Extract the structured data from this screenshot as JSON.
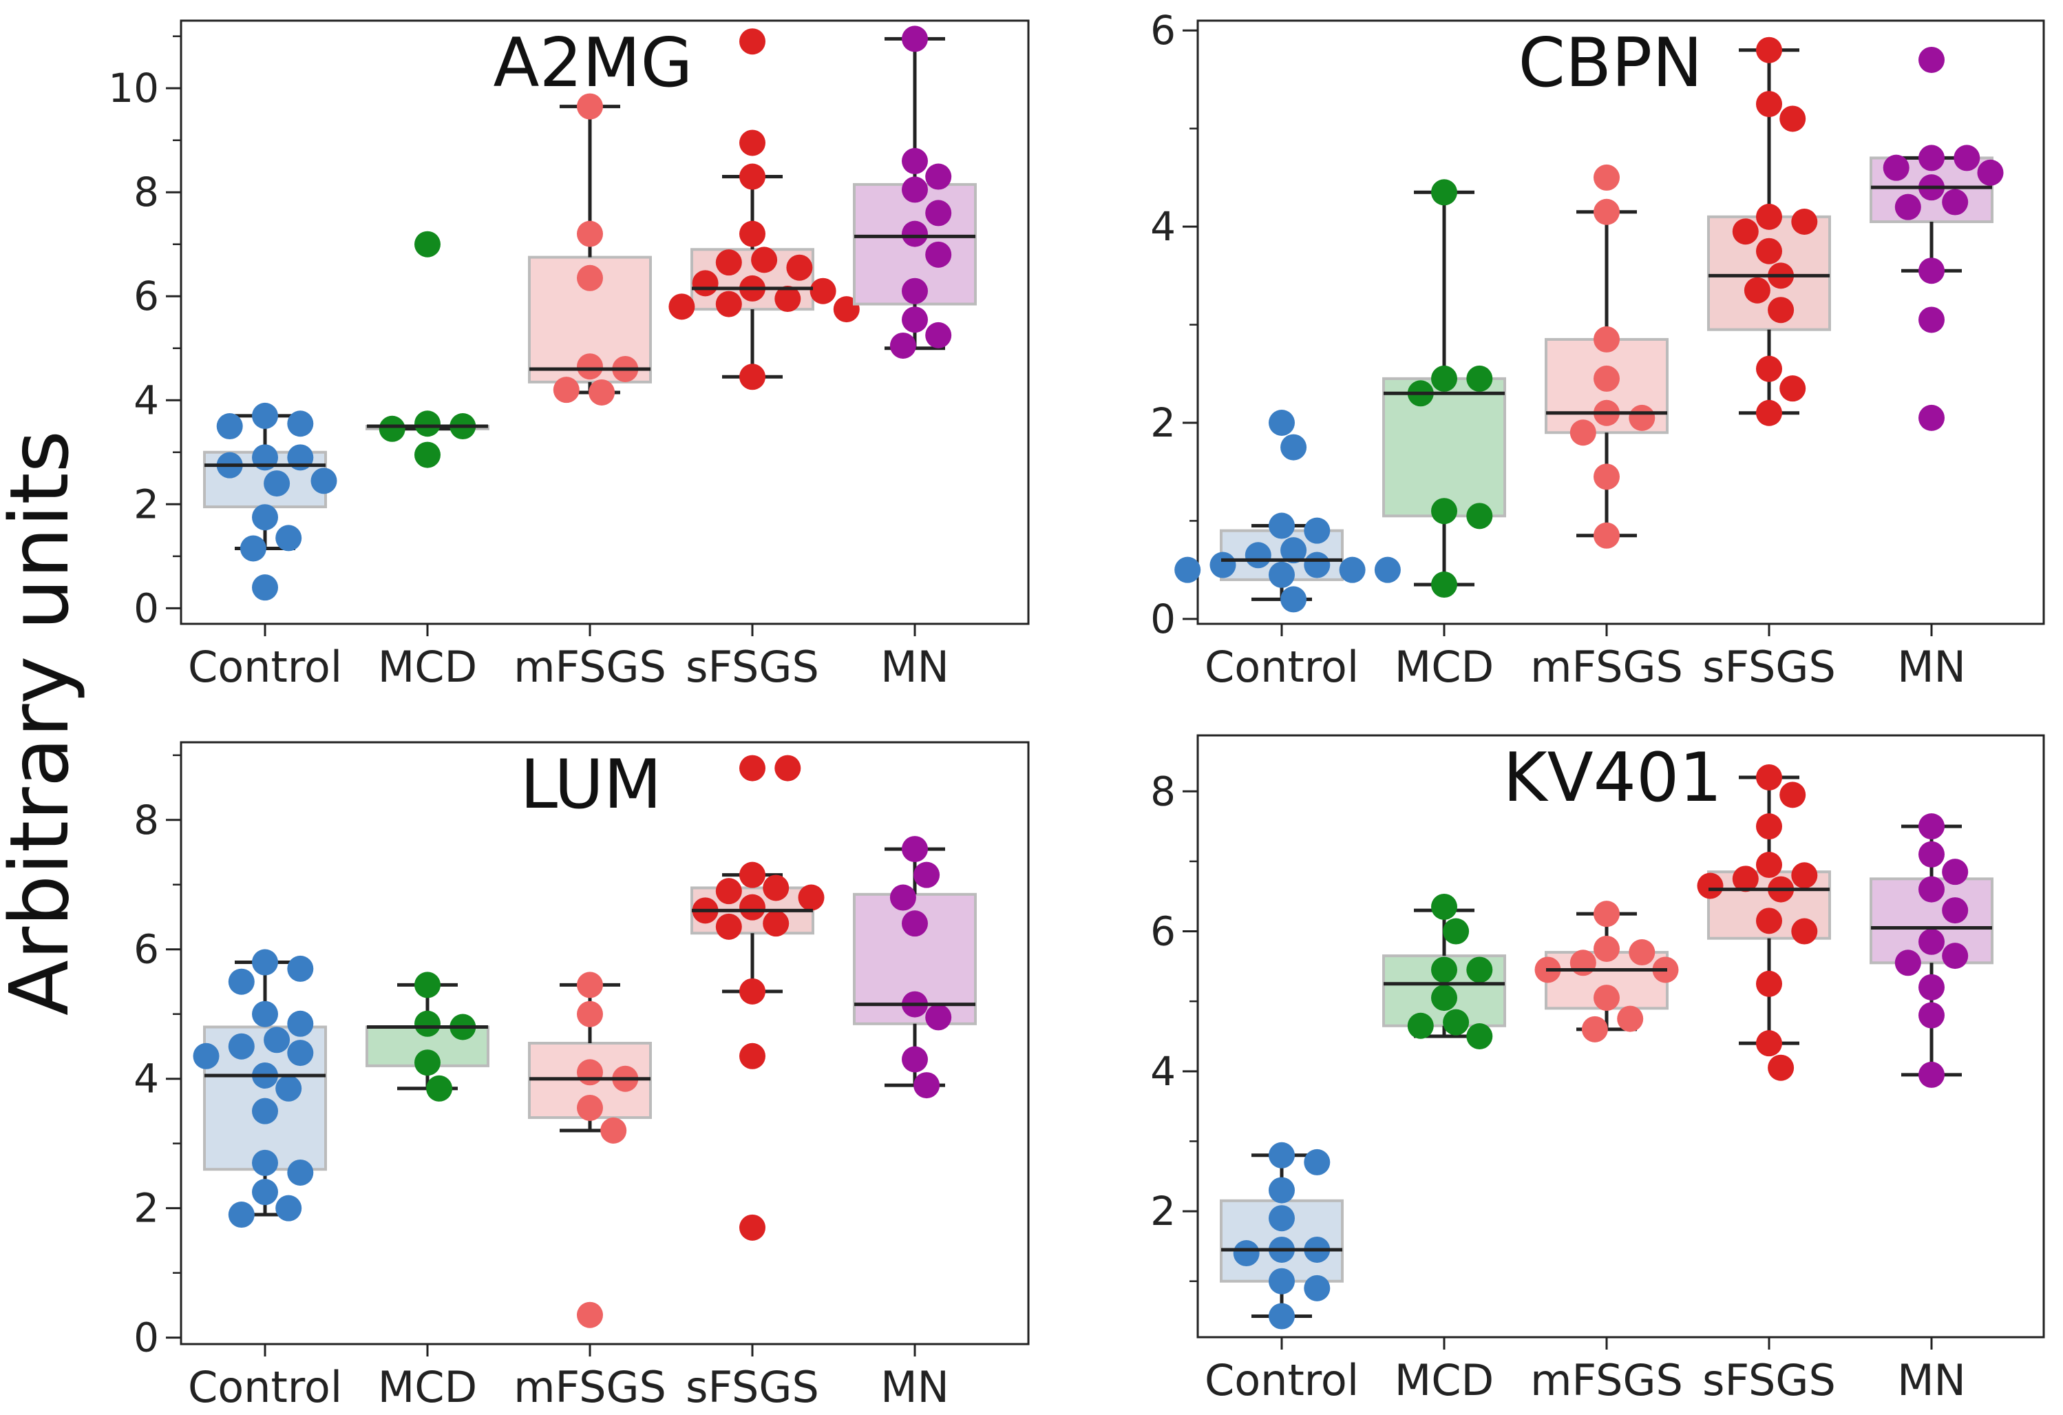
{
  "figure": {
    "shared_ylabel": "Arbitrary units",
    "colors": {
      "Control": "#3a7ec4",
      "MCD": "#118a1d",
      "mFSGS": "#ee6363",
      "sFSGS": "#dd2222",
      "MN": "#9c109c"
    },
    "box_fill": {
      "Control": "#d2deeb",
      "MCD": "#bde0c3",
      "mFSGS": "#f7d3d3",
      "sFSGS": "#f2cfcf",
      "MN": "#e3c2e3"
    }
  },
  "chart_data": [
    {
      "type": "box",
      "title": "A2MG",
      "categories": [
        "Control",
        "MCD",
        "mFSGS",
        "sFSGS",
        "MN"
      ],
      "ylim": [
        -0.3,
        11.3
      ],
      "yticks": [
        0,
        2,
        4,
        6,
        8,
        10
      ],
      "yminor": [
        1,
        3,
        5,
        7,
        9,
        11
      ],
      "series": [
        {
          "name": "Control",
          "box": {
            "q1": 1.95,
            "median": 2.75,
            "q3": 3.0,
            "whislo": 1.15,
            "whishi": 3.7
          },
          "points": [
            0.4,
            1.15,
            1.35,
            1.75,
            2.4,
            2.45,
            2.75,
            2.9,
            2.9,
            3.5,
            3.55,
            3.7
          ]
        },
        {
          "name": "MCD",
          "box": {
            "q1": 3.45,
            "median": 3.5,
            "q3": 3.5,
            "whislo": 3.45,
            "whishi": 3.5
          },
          "points": [
            2.95,
            3.45,
            3.5,
            3.55,
            7.0
          ]
        },
        {
          "name": "mFSGS",
          "box": {
            "q1": 4.35,
            "median": 4.6,
            "q3": 6.75,
            "whislo": 4.15,
            "whishi": 9.65
          },
          "points": [
            4.15,
            4.2,
            4.6,
            4.65,
            6.35,
            7.2,
            9.65
          ]
        },
        {
          "name": "sFSGS",
          "box": {
            "q1": 5.75,
            "median": 6.15,
            "q3": 6.9,
            "whislo": 4.45,
            "whishi": 8.3
          },
          "points": [
            4.45,
            5.75,
            5.8,
            5.85,
            5.95,
            6.1,
            6.15,
            6.25,
            6.55,
            6.65,
            6.7,
            7.2,
            8.3,
            8.95,
            10.9
          ]
        },
        {
          "name": "MN",
          "box": {
            "q1": 5.85,
            "median": 7.15,
            "q3": 8.15,
            "whislo": 5.0,
            "whishi": 10.95
          },
          "points": [
            5.05,
            5.25,
            5.55,
            6.1,
            6.8,
            7.2,
            7.6,
            8.05,
            8.3,
            8.6,
            10.95
          ]
        }
      ]
    },
    {
      "type": "box",
      "title": "CBPN",
      "categories": [
        "Control",
        "MCD",
        "mFSGS",
        "sFSGS",
        "MN"
      ],
      "ylim": [
        -0.05,
        6.1
      ],
      "yticks": [
        0,
        2,
        4,
        6
      ],
      "yminor": [
        1,
        3,
        5
      ],
      "series": [
        {
          "name": "Control",
          "box": {
            "q1": 0.4,
            "median": 0.6,
            "q3": 0.9,
            "whislo": 0.2,
            "whishi": 0.95
          },
          "points": [
            0.2,
            0.45,
            0.5,
            0.5,
            0.5,
            0.55,
            0.55,
            0.65,
            0.7,
            0.9,
            0.95,
            1.75,
            2.0
          ]
        },
        {
          "name": "MCD",
          "box": {
            "q1": 1.05,
            "median": 2.3,
            "q3": 2.45,
            "whislo": 0.35,
            "whishi": 4.35
          },
          "points": [
            0.35,
            1.05,
            1.1,
            2.3,
            2.45,
            2.45,
            4.35
          ]
        },
        {
          "name": "mFSGS",
          "box": {
            "q1": 1.9,
            "median": 2.1,
            "q3": 2.85,
            "whislo": 0.85,
            "whishi": 4.15
          },
          "points": [
            0.85,
            1.45,
            1.9,
            2.05,
            2.1,
            2.45,
            2.85,
            4.15,
            4.5
          ]
        },
        {
          "name": "sFSGS",
          "box": {
            "q1": 2.95,
            "median": 3.5,
            "q3": 4.1,
            "whislo": 2.1,
            "whishi": 5.8
          },
          "points": [
            2.1,
            2.35,
            2.55,
            3.15,
            3.35,
            3.5,
            3.75,
            3.95,
            4.05,
            4.1,
            5.1,
            5.25,
            5.8
          ]
        },
        {
          "name": "MN",
          "box": {
            "q1": 4.05,
            "median": 4.4,
            "q3": 4.7,
            "whislo": 3.55,
            "whishi": 4.7
          },
          "points": [
            2.05,
            3.05,
            3.55,
            4.2,
            4.25,
            4.4,
            4.55,
            4.6,
            4.7,
            4.7,
            5.7
          ]
        }
      ]
    },
    {
      "type": "box",
      "title": "LUM",
      "categories": [
        "Control",
        "MCD",
        "mFSGS",
        "sFSGS",
        "MN"
      ],
      "ylim": [
        -0.1,
        9.2
      ],
      "yticks": [
        0,
        2,
        4,
        6,
        8
      ],
      "yminor": [
        1,
        3,
        5,
        7,
        9
      ],
      "series": [
        {
          "name": "Control",
          "box": {
            "q1": 2.6,
            "median": 4.05,
            "q3": 4.8,
            "whislo": 1.9,
            "whishi": 5.8
          },
          "points": [
            1.9,
            2.0,
            2.25,
            2.55,
            2.7,
            3.5,
            3.85,
            4.05,
            4.35,
            4.4,
            4.5,
            4.6,
            4.85,
            5.0,
            5.5,
            5.7,
            5.8
          ]
        },
        {
          "name": "MCD",
          "box": {
            "q1": 4.2,
            "median": 4.8,
            "q3": 4.8,
            "whislo": 3.85,
            "whishi": 5.45
          },
          "points": [
            3.85,
            4.25,
            4.8,
            4.85,
            5.45
          ]
        },
        {
          "name": "mFSGS",
          "box": {
            "q1": 3.4,
            "median": 4.0,
            "q3": 4.55,
            "whislo": 3.2,
            "whishi": 5.45
          },
          "points": [
            0.35,
            3.2,
            3.55,
            4.0,
            4.1,
            5.0,
            5.45
          ]
        },
        {
          "name": "sFSGS",
          "box": {
            "q1": 6.25,
            "median": 6.6,
            "q3": 6.95,
            "whislo": 5.35,
            "whishi": 7.15
          },
          "points": [
            1.7,
            4.35,
            5.35,
            6.35,
            6.4,
            6.6,
            6.65,
            6.8,
            6.9,
            6.95,
            7.15,
            8.8,
            8.8
          ]
        },
        {
          "name": "MN",
          "box": {
            "q1": 4.85,
            "median": 5.15,
            "q3": 6.85,
            "whislo": 3.9,
            "whishi": 7.55
          },
          "points": [
            3.9,
            4.3,
            4.95,
            5.15,
            6.4,
            6.8,
            7.15,
            7.55
          ]
        }
      ]
    },
    {
      "type": "box",
      "title": "KV401",
      "categories": [
        "Control",
        "MCD",
        "mFSGS",
        "sFSGS",
        "MN"
      ],
      "ylim": [
        0.2,
        8.8
      ],
      "yticks": [
        2,
        4,
        6,
        8
      ],
      "yminor": [
        1,
        3,
        5,
        7
      ],
      "series": [
        {
          "name": "Control",
          "box": {
            "q1": 1.0,
            "median": 1.45,
            "q3": 2.15,
            "whislo": 0.5,
            "whishi": 2.8
          },
          "points": [
            0.5,
            0.9,
            1.0,
            1.4,
            1.45,
            1.45,
            1.9,
            2.3,
            2.7,
            2.8
          ]
        },
        {
          "name": "MCD",
          "box": {
            "q1": 4.65,
            "median": 5.25,
            "q3": 5.65,
            "whislo": 4.5,
            "whishi": 6.3
          },
          "points": [
            4.5,
            4.65,
            4.7,
            5.05,
            5.45,
            5.45,
            6.0,
            6.35
          ]
        },
        {
          "name": "mFSGS",
          "box": {
            "q1": 4.9,
            "median": 5.45,
            "q3": 5.7,
            "whislo": 4.6,
            "whishi": 6.25
          },
          "points": [
            4.6,
            4.75,
            5.05,
            5.45,
            5.45,
            5.55,
            5.7,
            5.75,
            6.25
          ]
        },
        {
          "name": "sFSGS",
          "box": {
            "q1": 5.9,
            "median": 6.6,
            "q3": 6.85,
            "whislo": 4.4,
            "whishi": 8.2
          },
          "points": [
            4.05,
            4.4,
            5.25,
            6.0,
            6.15,
            6.6,
            6.65,
            6.75,
            6.8,
            6.95,
            7.5,
            7.95,
            8.2
          ]
        },
        {
          "name": "MN",
          "box": {
            "q1": 5.55,
            "median": 6.05,
            "q3": 6.75,
            "whislo": 3.95,
            "whishi": 7.5
          },
          "points": [
            3.95,
            4.8,
            5.2,
            5.55,
            5.65,
            5.85,
            6.3,
            6.6,
            6.85,
            7.1,
            7.5
          ]
        }
      ]
    }
  ]
}
